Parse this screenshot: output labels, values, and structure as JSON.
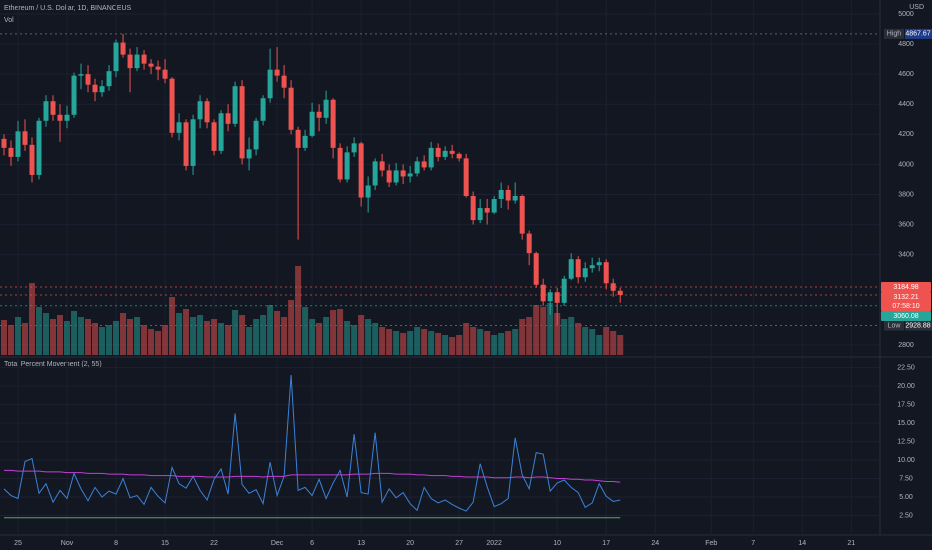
{
  "chart_data": [
    {
      "type": "candlestick",
      "title": "Ethereum / U.S. Dollar, 1D, BINANCEUS",
      "volume_title": "Vol",
      "currency": "USD",
      "x": [
        -2,
        -1,
        0,
        1,
        2,
        3,
        4,
        5,
        6,
        7,
        8,
        9,
        10,
        11,
        12,
        13,
        14,
        15,
        16,
        17,
        18,
        19,
        20,
        21,
        22,
        23,
        24,
        25,
        26,
        27,
        28,
        29,
        30,
        31,
        32,
        33,
        34,
        35,
        36,
        37,
        38,
        39,
        40,
        41,
        42,
        43,
        44,
        45,
        46,
        47,
        48,
        49,
        50,
        51,
        52,
        53,
        54,
        55,
        56,
        57,
        58,
        59,
        60,
        61,
        62,
        63,
        64,
        65,
        66,
        67,
        68,
        69,
        70,
        71,
        72,
        73,
        74,
        75,
        76,
        77,
        78,
        79,
        80,
        81,
        82,
        83,
        84,
        85,
        86
      ],
      "xlim": [
        -2.57,
        123.1
      ],
      "xticks": [
        {
          "value": 0,
          "label": "25"
        },
        {
          "value": 7,
          "label": "Nov"
        },
        {
          "value": 14,
          "label": "8"
        },
        {
          "value": 21,
          "label": "15"
        },
        {
          "value": 28,
          "label": "22"
        },
        {
          "value": 37,
          "label": "Dec"
        },
        {
          "value": 42,
          "label": "6"
        },
        {
          "value": 49,
          "label": "13"
        },
        {
          "value": 56,
          "label": "20"
        },
        {
          "value": 63,
          "label": "27"
        },
        {
          "value": 68,
          "label": "2022"
        },
        {
          "value": 77,
          "label": "10"
        },
        {
          "value": 84,
          "label": "17"
        },
        {
          "value": 91,
          "label": "24"
        },
        {
          "value": 99,
          "label": "Feb"
        },
        {
          "value": 105,
          "label": "7"
        },
        {
          "value": 112,
          "label": "14"
        },
        {
          "value": 119,
          "label": "21"
        }
      ],
      "open": [
        4170,
        4110,
        4050,
        4220,
        4130,
        3930,
        4290,
        4420,
        4330,
        4290,
        4330,
        4590,
        4600,
        4530,
        4480,
        4520,
        4620,
        4810,
        4730,
        4640,
        4730,
        4670,
        4650,
        4630,
        4570,
        4210,
        4280,
        3990,
        4300,
        4420,
        4280,
        4090,
        4340,
        4270,
        4520,
        4040,
        4100,
        4290,
        4440,
        4630,
        4590,
        4510,
        4230,
        4110,
        4190,
        4350,
        4310,
        4430,
        4110,
        3900,
        4080,
        4140,
        3780,
        3860,
        4020,
        3960,
        3880,
        3960,
        3920,
        3940,
        4020,
        3980,
        4110,
        4050,
        4090,
        4070,
        4040,
        3790,
        3630,
        3710,
        3680,
        3770,
        3830,
        3760,
        3790,
        3540,
        3410,
        3200,
        3090,
        3150,
        3080,
        3240,
        3370,
        3250,
        3310,
        3330,
        3350,
        3210,
        3160
      ],
      "high": [
        4200,
        4160,
        4290,
        4300,
        4180,
        4310,
        4460,
        4460,
        4400,
        4390,
        4610,
        4670,
        4660,
        4570,
        4560,
        4660,
        4830,
        4867.67,
        4770,
        4780,
        4760,
        4700,
        4690,
        4700,
        4580,
        4340,
        4300,
        4330,
        4460,
        4440,
        4300,
        4360,
        4400,
        4550,
        4560,
        4180,
        4310,
        4460,
        4770,
        4780,
        4660,
        4560,
        4250,
        4230,
        4410,
        4400,
        4490,
        4440,
        4140,
        4120,
        4180,
        4150,
        3920,
        4040,
        4070,
        4000,
        4010,
        4000,
        3990,
        4050,
        4060,
        4150,
        4140,
        4120,
        4130,
        4080,
        4070,
        3820,
        3770,
        3770,
        3790,
        3880,
        3860,
        3880,
        3800,
        3560,
        3420,
        3240,
        3170,
        3180,
        3260,
        3410,
        3390,
        3350,
        3380,
        3380,
        3370,
        3240,
        3180
      ],
      "low": [
        4060,
        3990,
        4020,
        4090,
        3880,
        3900,
        4250,
        4290,
        4150,
        4240,
        4310,
        4500,
        4480,
        4420,
        4450,
        4490,
        4580,
        4710,
        4480,
        4620,
        4630,
        4600,
        4560,
        4540,
        4180,
        4160,
        3960,
        3930,
        4240,
        4240,
        4060,
        4070,
        4220,
        4250,
        4000,
        3960,
        4060,
        4260,
        4410,
        4550,
        4440,
        4200,
        3500,
        4090,
        4180,
        4220,
        4270,
        4040,
        3880,
        3880,
        4050,
        3720,
        3680,
        3830,
        3920,
        3850,
        3860,
        3870,
        3880,
        3920,
        3960,
        3960,
        4020,
        4030,
        4040,
        4020,
        3780,
        3600,
        3610,
        3600,
        3670,
        3710,
        3700,
        3740,
        3500,
        3330,
        3180,
        3060,
        3000,
        2928.88,
        3060,
        3230,
        3210,
        3220,
        3280,
        3290,
        3170,
        3120,
        3080
      ],
      "close": [
        4110,
        4050,
        4220,
        4130,
        3930,
        4290,
        4420,
        4330,
        4290,
        4330,
        4590,
        4600,
        4530,
        4480,
        4520,
        4620,
        4810,
        4730,
        4640,
        4730,
        4670,
        4650,
        4630,
        4570,
        4210,
        4280,
        3990,
        4300,
        4420,
        4280,
        4090,
        4340,
        4270,
        4520,
        4040,
        4100,
        4290,
        4440,
        4630,
        4590,
        4510,
        4230,
        4110,
        4190,
        4350,
        4310,
        4430,
        4110,
        3900,
        4080,
        4140,
        3780,
        3860,
        4020,
        3960,
        3880,
        3960,
        3920,
        3940,
        4020,
        3980,
        4110,
        4050,
        4090,
        4070,
        4040,
        3790,
        3630,
        3710,
        3680,
        3770,
        3830,
        3760,
        3790,
        3540,
        3410,
        3200,
        3090,
        3150,
        3080,
        3240,
        3370,
        3250,
        3310,
        3330,
        3350,
        3210,
        3160,
        3132.21
      ],
      "volume": [
        35,
        30,
        38,
        32,
        72,
        48,
        42,
        36,
        40,
        34,
        44,
        38,
        36,
        32,
        28,
        30,
        34,
        42,
        36,
        38,
        30,
        26,
        24,
        30,
        58,
        42,
        46,
        38,
        40,
        34,
        36,
        32,
        30,
        45,
        40,
        28,
        36,
        40,
        50,
        44,
        38,
        55,
        89,
        48,
        36,
        32,
        38,
        45,
        46,
        34,
        30,
        40,
        36,
        32,
        28,
        26,
        24,
        22,
        24,
        28,
        26,
        24,
        22,
        20,
        18,
        20,
        32,
        28,
        26,
        24,
        20,
        22,
        24,
        26,
        36,
        38,
        50,
        48,
        52,
        42,
        36,
        38,
        32,
        28,
        26,
        20,
        28,
        24,
        20
      ],
      "volume_ylim": [
        0,
        100
      ],
      "up_color": "#26a69a",
      "down_color": "#ef5350",
      "ylim": [
        2733,
        5093
      ],
      "yticks": [
        2800,
        3400,
        3600,
        3800,
        4000,
        4200,
        4400,
        4600,
        4800,
        5000
      ],
      "high_marker": {
        "label": "High",
        "value": 4867.67
      },
      "low_marker": {
        "label": "Low",
        "value": 2928.88
      },
      "price_tags": [
        {
          "value": 3184.98,
          "color": "#ef5350"
        },
        {
          "value": 3132.21,
          "color": "#ef5350",
          "countdown": "07:58:10"
        },
        {
          "value": 3060.08,
          "color": "#26a69a"
        }
      ]
    },
    {
      "type": "line",
      "title": "Total Percent Movement (2, 55)",
      "x": [
        -2,
        -1,
        0,
        1,
        2,
        3,
        4,
        5,
        6,
        7,
        8,
        9,
        10,
        11,
        12,
        13,
        14,
        15,
        16,
        17,
        18,
        19,
        20,
        21,
        22,
        23,
        24,
        25,
        26,
        27,
        28,
        29,
        30,
        31,
        32,
        33,
        34,
        35,
        36,
        37,
        38,
        39,
        40,
        41,
        42,
        43,
        44,
        45,
        46,
        47,
        48,
        49,
        50,
        51,
        52,
        53,
        54,
        55,
        56,
        57,
        58,
        59,
        60,
        61,
        62,
        63,
        64,
        65,
        66,
        67,
        68,
        69,
        70,
        71,
        72,
        73,
        74,
        75,
        76,
        77,
        78,
        79,
        80,
        81,
        82,
        83,
        84,
        85,
        86
      ],
      "series": [
        {
          "color": "#3b82d6",
          "values": [
            6.1,
            5.2,
            4.8,
            9.8,
            10.2,
            5.5,
            6.8,
            4.3,
            5.9,
            4.8,
            8.2,
            6.1,
            4.5,
            6.3,
            5.0,
            5.8,
            5.4,
            7.5,
            4.9,
            5.2,
            4.0,
            6.3,
            5.1,
            4.2,
            9.0,
            6.8,
            6.2,
            7.8,
            5.9,
            4.6,
            7.4,
            8.8,
            5.4,
            16.3,
            6.7,
            5.5,
            6.0,
            4.1,
            9.7,
            5.2,
            7.8,
            21.5,
            5.9,
            6.3,
            5.2,
            7.4,
            4.8,
            6.9,
            8.6,
            5.0,
            13.5,
            5.6,
            5.4,
            13.7,
            4.3,
            6.1,
            4.9,
            5.6,
            4.1,
            3.2,
            6.3,
            4.8,
            4.2,
            4.6,
            4.0,
            3.5,
            3.1,
            4.3,
            9.5,
            6.4,
            3.7,
            4.1,
            4.8,
            13.0,
            8.0,
            6.1,
            11.0,
            10.8,
            5.8,
            6.9,
            7.3,
            6.3,
            5.6,
            3.6,
            4.2,
            6.8,
            5.1,
            4.4,
            4.6
          ]
        },
        {
          "color": "#c13fd6",
          "values": [
            8.6,
            8.6,
            8.5,
            8.5,
            8.5,
            8.5,
            8.4,
            8.4,
            8.4,
            8.3,
            8.3,
            8.3,
            8.2,
            8.2,
            8.2,
            8.1,
            8.1,
            8.1,
            8.0,
            8.0,
            8.0,
            7.9,
            7.9,
            7.9,
            7.9,
            7.8,
            7.8,
            7.8,
            7.8,
            7.7,
            7.7,
            7.7,
            7.7,
            7.8,
            7.8,
            7.8,
            7.8,
            7.7,
            7.8,
            7.8,
            7.8,
            8.0,
            8.0,
            8.0,
            8.0,
            8.0,
            8.0,
            8.0,
            8.0,
            8.0,
            8.1,
            8.1,
            8.1,
            8.2,
            8.2,
            8.2,
            8.1,
            8.1,
            8.1,
            8.0,
            8.0,
            7.9,
            7.9,
            7.9,
            7.8,
            7.8,
            7.7,
            7.7,
            7.7,
            7.7,
            7.6,
            7.6,
            7.6,
            7.7,
            7.7,
            7.6,
            7.7,
            7.7,
            7.6,
            7.5,
            7.5,
            7.4,
            7.4,
            7.3,
            7.3,
            7.2,
            7.1,
            7.1,
            7.0
          ]
        }
      ],
      "hline": {
        "value": 2.2,
        "color": "#4caf50"
      },
      "ylim": [
        0,
        23.8
      ],
      "yticks": [
        {
          "value": 2.5,
          "label": "2.50"
        },
        {
          "value": 5,
          "label": "5.00"
        },
        {
          "value": 7.5,
          "label": "7.50"
        },
        {
          "value": 10,
          "label": "10.00"
        },
        {
          "value": 12.5,
          "label": "12.50"
        },
        {
          "value": 15,
          "label": "15.00"
        },
        {
          "value": 17.5,
          "label": "17.50"
        },
        {
          "value": 20,
          "label": "20.00"
        },
        {
          "value": 22.5,
          "label": "22.50"
        }
      ]
    }
  ]
}
